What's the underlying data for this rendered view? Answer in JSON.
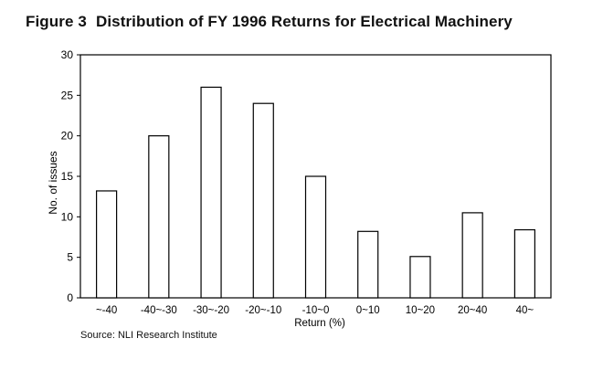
{
  "figure": {
    "number": "Figure 3",
    "title": "Distribution of FY 1996 Returns for Electrical Machinery"
  },
  "source": "Source: NLI Research Institute",
  "chart_data": {
    "type": "bar",
    "categories": [
      "~-40",
      "-40~-30",
      "-30~-20",
      "-20~-10",
      "-10~0",
      "0~10",
      "10~20",
      "20~40",
      "40~"
    ],
    "values": [
      13.2,
      20,
      26,
      24,
      15,
      8.2,
      5.1,
      10.5,
      8.4
    ],
    "xlabel": "Return (%)",
    "ylabel": "No. of issues",
    "ylim": [
      0,
      30
    ],
    "yticks": [
      0,
      5,
      10,
      15,
      20,
      25,
      30
    ],
    "grid": false,
    "legend": "none",
    "colors": {
      "bar_fill": "#ffffff",
      "bar_stroke": "#000000",
      "axis": "#000000"
    }
  }
}
